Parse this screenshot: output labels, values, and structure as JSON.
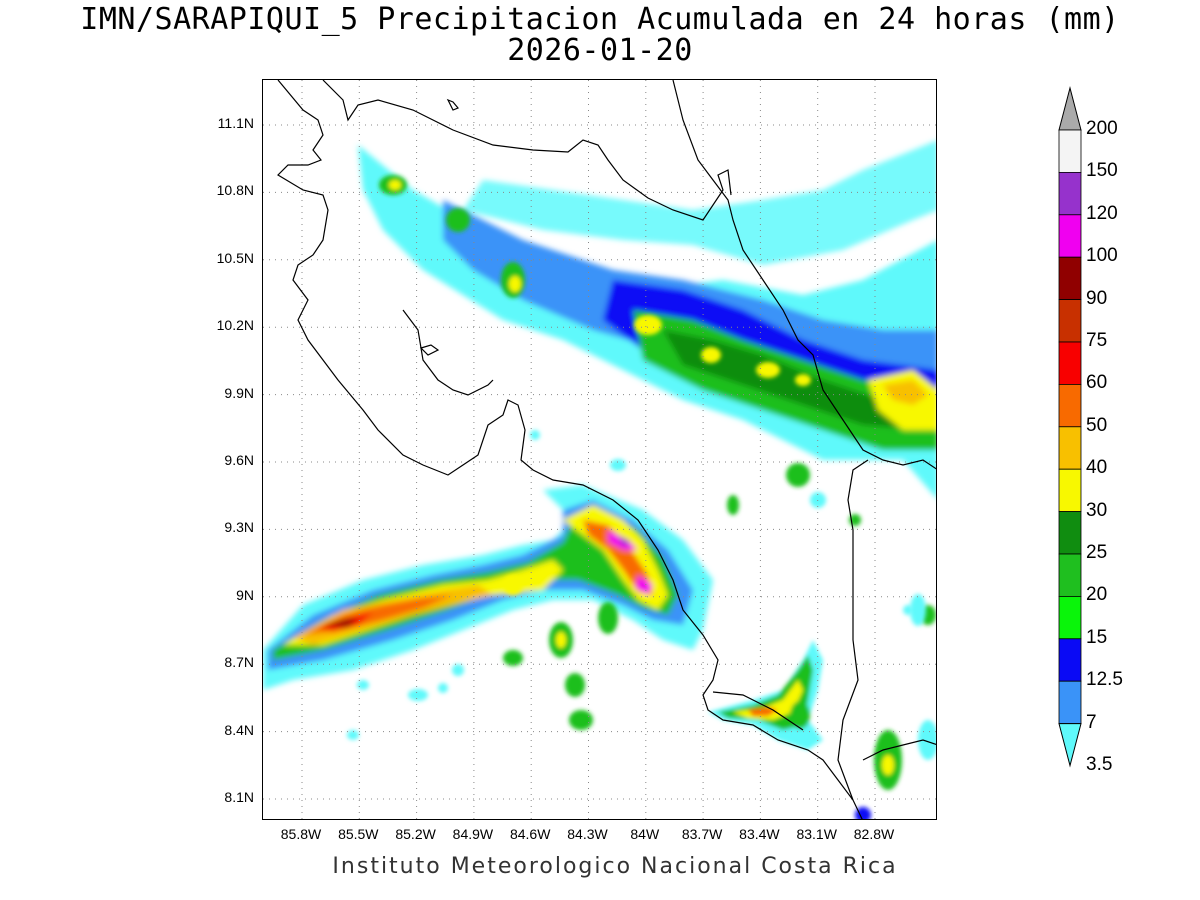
{
  "header": {
    "title": "IMN/SARAPIQUI_5 Precipitacion Acumulada en 24 horas (mm)",
    "date": "2026-01-20"
  },
  "footer": {
    "credit": "Instituto Meteorologico Nacional Costa Rica"
  },
  "map": {
    "lat_range": [
      8.0,
      11.3
    ],
    "lon_range": [
      -86.0,
      -82.6
    ],
    "lat_ticks": [
      "11.1N",
      "10.8N",
      "10.5N",
      "10.2N",
      "9.9N",
      "9.6N",
      "9.3N",
      "9N",
      "8.7N",
      "8.4N",
      "8.1N"
    ],
    "lon_ticks": [
      "85.8W",
      "85.5W",
      "85.2W",
      "84.9W",
      "84.6W",
      "84.3W",
      "84W",
      "83.7W",
      "83.4W",
      "83.1W",
      "82.8W"
    ],
    "grid": true,
    "grid_style": "dotted",
    "background_color": "#ffffff"
  },
  "colorbar": {
    "unit": "mm",
    "labels": [
      "3.5",
      "7",
      "12.5",
      "15",
      "20",
      "25",
      "30",
      "40",
      "50",
      "60",
      "75",
      "90",
      "100",
      "120",
      "150",
      "200"
    ],
    "colors": [
      "#5ff9fb",
      "#3a93f8",
      "#0a0af5",
      "#0af50a",
      "#1fbf1f",
      "#108d10",
      "#f8f800",
      "#f8c000",
      "#f86a00",
      "#f80000",
      "#c83000",
      "#900000",
      "#f000f0",
      "#9632cc",
      "#f4f4f4",
      "#aaaaaa"
    ]
  }
}
